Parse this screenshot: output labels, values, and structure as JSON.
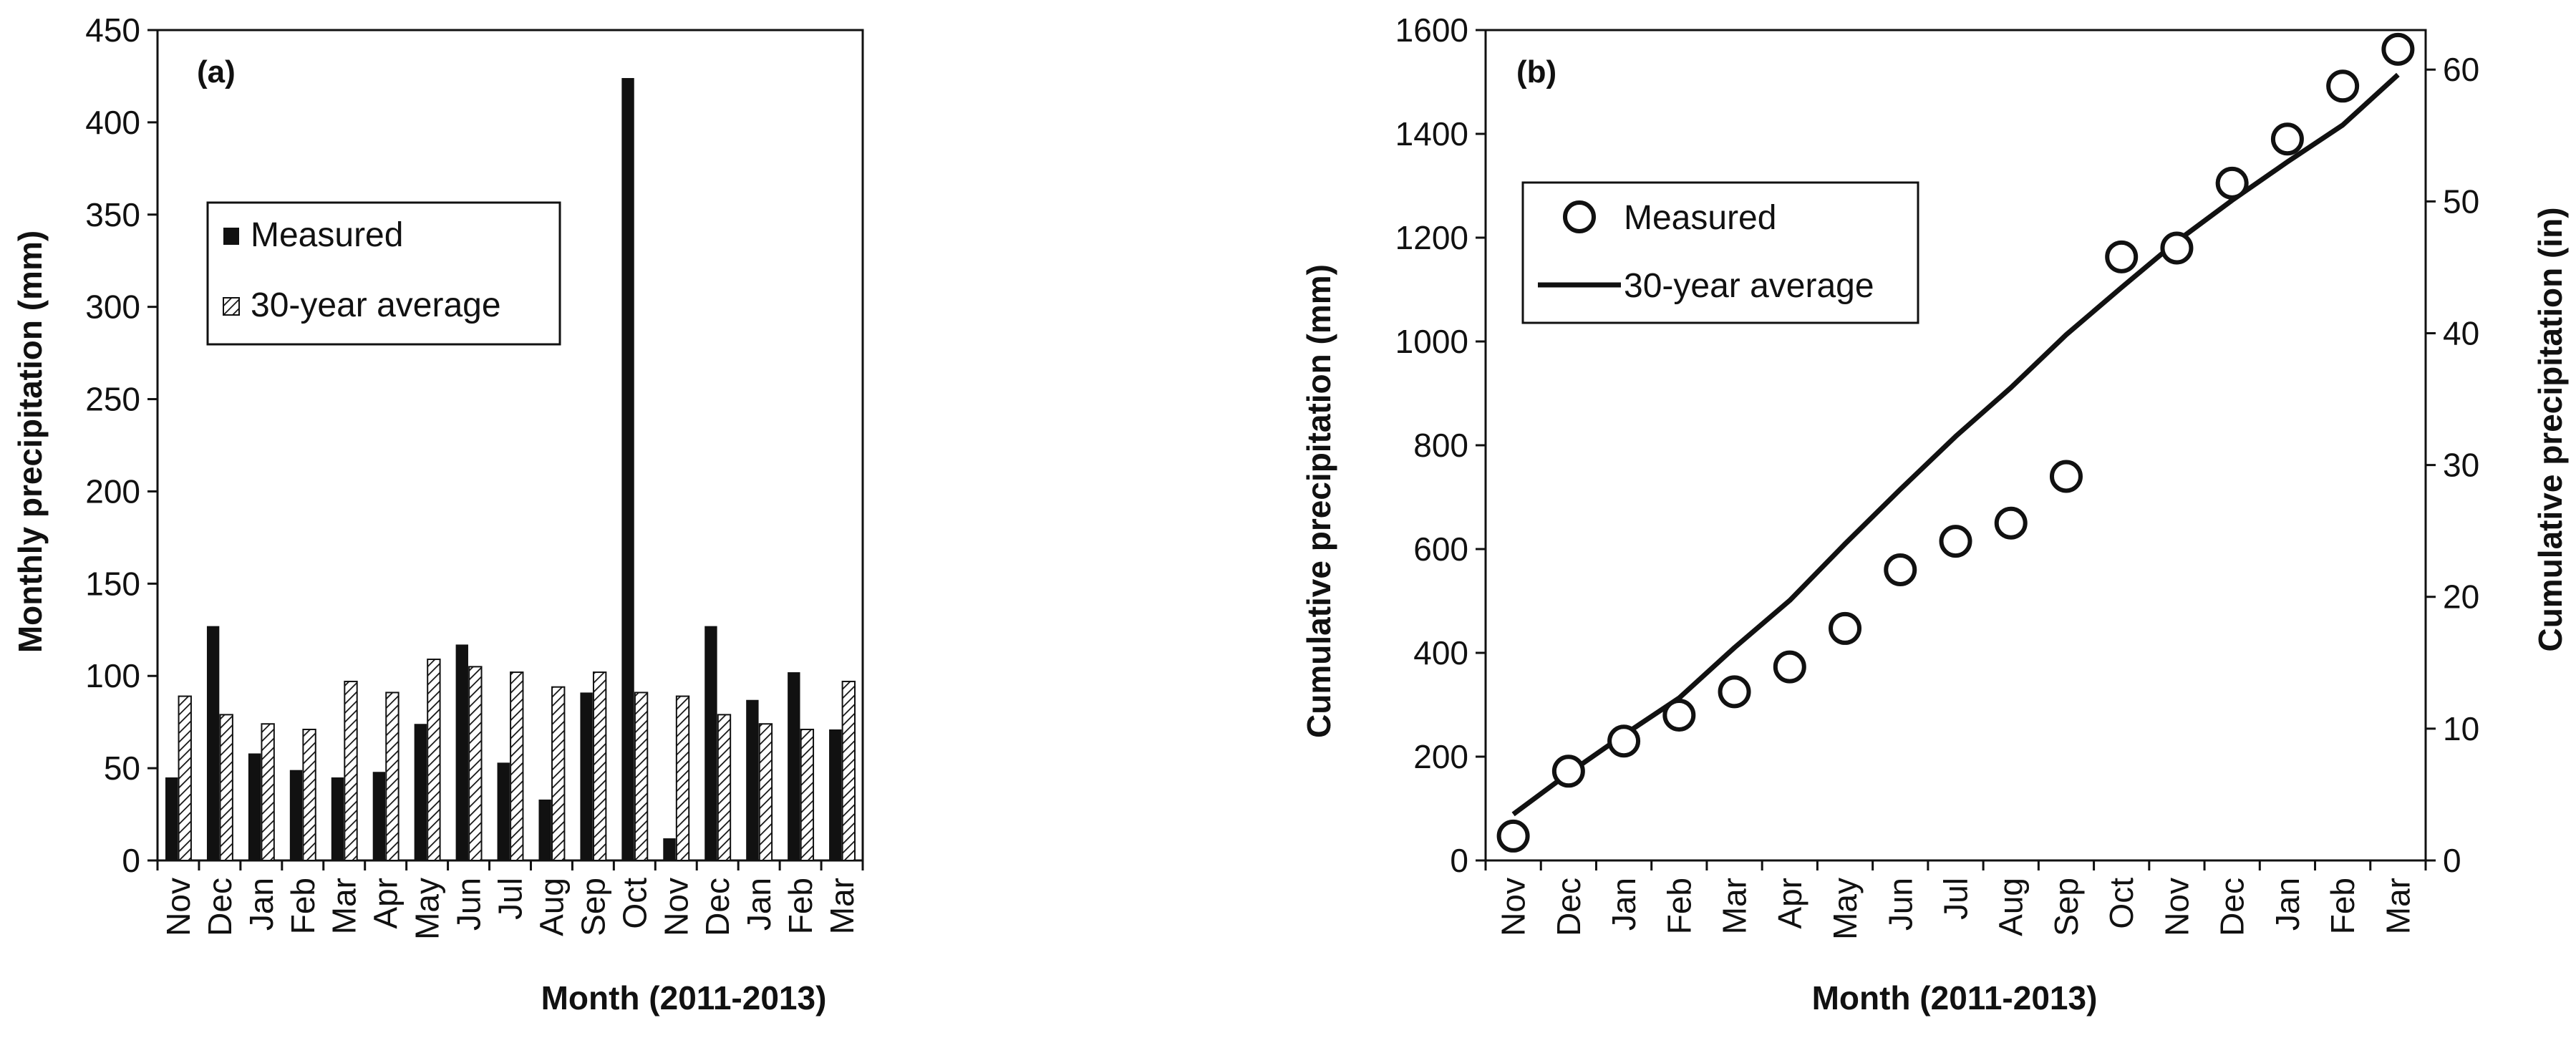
{
  "chart_data": [
    {
      "type": "bar",
      "panel_label": "(a)",
      "xlabel": "Month (2011-2013)",
      "ylabel": "Monthly precipitation (mm)",
      "ylim": [
        0,
        450
      ],
      "yticks": [
        0,
        50,
        100,
        150,
        200,
        250,
        300,
        350,
        400,
        450
      ],
      "categories": [
        "Nov",
        "Dec",
        "Jan",
        "Feb",
        "Mar",
        "Apr",
        "May",
        "Jun",
        "Jul",
        "Aug",
        "Sep",
        "Oct",
        "Nov",
        "Dec",
        "Jan",
        "Feb",
        "Mar"
      ],
      "legend_position": "upper-left",
      "series": [
        {
          "name": "Measured",
          "style": "solid",
          "color": "#111111",
          "values": [
            45,
            127,
            58,
            49,
            45,
            48,
            74,
            117,
            53,
            33,
            91,
            424,
            12,
            127,
            87,
            102,
            71
          ]
        },
        {
          "name": "30-year average",
          "style": "hatched",
          "color": "#111111",
          "values": [
            89,
            79,
            74,
            71,
            97,
            91,
            109,
            105,
            102,
            94,
            102,
            91,
            89,
            79,
            74,
            71,
            97
          ]
        }
      ]
    },
    {
      "type": "scatter",
      "panel_label": "(b)",
      "xlabel": "Month (2011-2013)",
      "ylabel": "Cumulative precipitation (mm)",
      "y2label": "Cumulative precipitation (in)",
      "ylim": [
        0,
        1600
      ],
      "yticks": [
        0,
        200,
        400,
        600,
        800,
        1000,
        1200,
        1400,
        1600
      ],
      "y2lim": [
        0,
        63
      ],
      "y2ticks": [
        0,
        10,
        20,
        30,
        40,
        50,
        60
      ],
      "categories": [
        "Nov",
        "Dec",
        "Jan",
        "Feb",
        "Mar",
        "Apr",
        "May",
        "Jun",
        "Jul",
        "Aug",
        "Sep",
        "Oct",
        "Nov",
        "Dec",
        "Jan",
        "Feb",
        "Mar"
      ],
      "legend_position": "upper-left",
      "series": [
        {
          "name": "Measured",
          "style": "circle-marker",
          "color": "#111111",
          "values": [
            47,
            172,
            230,
            280,
            325,
            373,
            447,
            560,
            615,
            650,
            740,
            1163,
            1180,
            1305,
            1390,
            1492,
            1563
          ]
        },
        {
          "name": "30-year average",
          "style": "line",
          "color": "#111111",
          "values": [
            89,
            168,
            242,
            313,
            410,
            501,
            610,
            715,
            817,
            911,
            1013,
            1104,
            1193,
            1272,
            1346,
            1417,
            1514
          ]
        }
      ]
    }
  ]
}
